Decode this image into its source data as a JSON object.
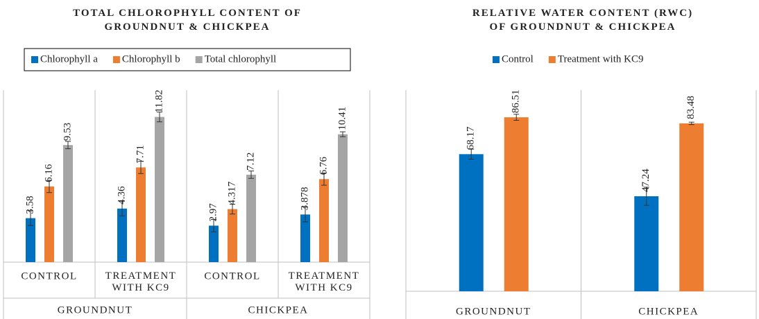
{
  "chart_data": [
    {
      "type": "bar",
      "title": "TOTAL CHLOROPHYLL CONTENT OF GROUNDNUT & CHICKPEA",
      "categories": [
        "CONTROL",
        "TREATMENT WITH KC9",
        "CONTROL",
        "TREATMENT WITH KC9"
      ],
      "group_labels": [
        "GROUNDNUT",
        "CHICKPEA"
      ],
      "series": [
        {
          "name": "Chlorophyll a",
          "color": "#0070c0",
          "values": [
            3.58,
            4.36,
            2.97,
            3.878
          ],
          "errors": [
            0.6,
            0.6,
            0.5,
            0.6
          ]
        },
        {
          "name": "Chlorophyll b",
          "color": "#ed7d31",
          "values": [
            6.16,
            7.71,
            4.317,
            6.76
          ],
          "errors": [
            0.5,
            0.5,
            0.4,
            0.5
          ]
        },
        {
          "name": "Total chlorophyll",
          "color": "#a5a5a5",
          "values": [
            9.53,
            11.82,
            7.12,
            10.41
          ],
          "errors": [
            0.3,
            0.4,
            0.3,
            0.2
          ]
        }
      ],
      "ylim": [
        0,
        14
      ],
      "legend": "top"
    },
    {
      "type": "bar",
      "title": "RELATIVE WATER CONTENT (RWC) OF GROUNDNUT & CHICKPEA",
      "categories": [
        "GROUNDNUT",
        "CHICKPEA"
      ],
      "series": [
        {
          "name": "Control",
          "color": "#0070c0",
          "values": [
            68.17,
            47.24
          ],
          "errors": [
            2.5,
            4.5
          ]
        },
        {
          "name": "Treatment with KC9",
          "color": "#ed7d31",
          "values": [
            86.51,
            83.48
          ],
          "errors": [
            1.5,
            0.6
          ]
        }
      ],
      "ylim": [
        0,
        100
      ],
      "legend": "top"
    }
  ]
}
